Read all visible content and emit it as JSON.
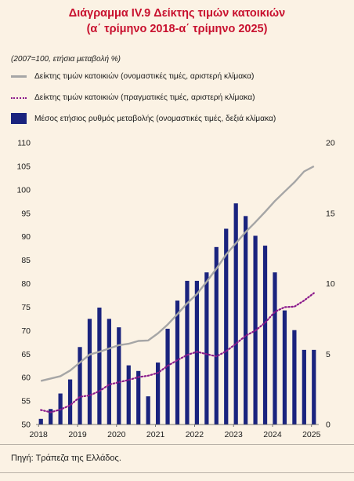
{
  "title_line1": "Διάγραμμα IV.9 Δείκτης τιμών κατοικιών",
  "title_line2": "(α΄ τρίμηνο 2018-α΄ τρίμηνο 2025)",
  "units_note": "(2007=100, ετήσια μεταβολή %)",
  "source": "Πηγή: Τράπεζα της Ελλάδος.",
  "colors": {
    "title": "#c8102e",
    "nominal": "#a6a6a6",
    "real": "#8b1a8b",
    "bars": "#1a237e",
    "background": "#fbf2e4"
  },
  "chart_data": {
    "type": "bar+line",
    "categories": [
      "2018 Q1",
      "2018 Q2",
      "2018 Q3",
      "2018 Q4",
      "2019 Q1",
      "2019 Q2",
      "2019 Q3",
      "2019 Q4",
      "2020 Q1",
      "2020 Q2",
      "2020 Q3",
      "2020 Q4",
      "2021 Q1",
      "2021 Q2",
      "2021 Q3",
      "2021 Q4",
      "2022 Q1",
      "2022 Q2",
      "2022 Q3",
      "2022 Q4",
      "2023 Q1",
      "2023 Q2",
      "2023 Q3",
      "2023 Q4",
      "2024 Q1",
      "2024 Q2",
      "2024 Q3",
      "2024 Q4",
      "2025 Q1"
    ],
    "x_tick_labels": [
      "2018",
      "2019",
      "2020",
      "2021",
      "2022",
      "2023",
      "2024",
      "2025"
    ],
    "y_left": {
      "min": 50,
      "max": 110,
      "step": 5,
      "ticks": [
        "50",
        "55",
        "60",
        "65",
        "70",
        "75",
        "80",
        "85",
        "90",
        "95",
        "100",
        "105",
        "110"
      ]
    },
    "y_right": {
      "min": 0,
      "max": 20,
      "step": 5,
      "ticks": [
        "0",
        "5",
        "10",
        "15",
        "20"
      ]
    },
    "series": [
      {
        "name": "Δείκτης τιμών κατοικιών (ονομαστικές τιμές, αριστερή κλίμακα)",
        "axis": "left",
        "kind": "line",
        "values": [
          59.3,
          59.8,
          60.3,
          61.5,
          63.2,
          64.9,
          65.5,
          66.2,
          66.9,
          67.2,
          67.8,
          67.9,
          69.4,
          71.3,
          73.5,
          75.8,
          77.8,
          80.4,
          83.2,
          86.2,
          88.6,
          91.0,
          93.1,
          95.3,
          97.6,
          99.6,
          101.6,
          103.9,
          105.0
        ]
      },
      {
        "name": "Δείκτης τιμών κατοικιών (πραγματικές τιμές, αριστερή κλίμακα)",
        "axis": "left",
        "kind": "dotted-line",
        "values": [
          53.1,
          52.6,
          53.2,
          54.1,
          55.9,
          56.2,
          57.1,
          58.5,
          59.0,
          59.5,
          60.1,
          60.4,
          61.0,
          62.5,
          63.7,
          64.8,
          65.5,
          65.0,
          64.5,
          65.6,
          67.2,
          68.9,
          70.0,
          71.7,
          74.0,
          75.0,
          75.1,
          76.4,
          78.0
        ]
      },
      {
        "name": "Μέσος ετήσιος ρυθμός μεταβολής (ονομαστικές τιμές, δεξιά κλίμακα)",
        "axis": "right",
        "kind": "bar",
        "values": [
          0.4,
          1.1,
          2.2,
          3.2,
          5.5,
          7.5,
          8.3,
          7.5,
          6.9,
          4.2,
          3.8,
          2.0,
          4.4,
          6.8,
          8.8,
          10.2,
          10.2,
          10.8,
          12.6,
          13.9,
          15.7,
          14.8,
          13.4,
          12.7,
          10.8,
          8.1,
          6.7,
          5.3,
          5.3
        ]
      }
    ]
  }
}
